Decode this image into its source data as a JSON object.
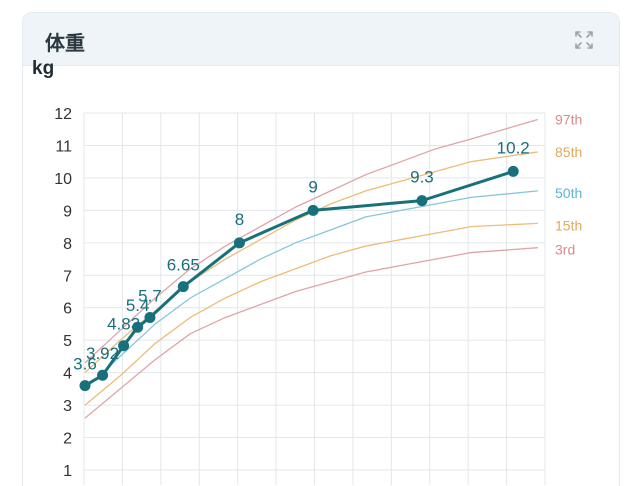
{
  "card": {
    "title": "体重",
    "expand_icon": "expand-arrows-icon"
  },
  "colors": {
    "child_series": "#17707a",
    "p97": "#e0a4a6",
    "p85": "#ecbd79",
    "p50": "#86c5dc",
    "p15": "#ecbd79",
    "p3": "#e0a4a6",
    "label_p97": "#d98c8c",
    "label_p85": "#e1a95a",
    "label_p50": "#5eb3d3",
    "label_p15": "#e1a95a",
    "label_p3": "#d98c8c",
    "grid": "#e3e7ea",
    "tick_text": "#333333"
  },
  "chart_data": {
    "type": "line",
    "ylabel": "kg",
    "ylim": [
      1,
      12
    ],
    "yticks": [
      1,
      2,
      3,
      4,
      5,
      6,
      7,
      8,
      9,
      10,
      11,
      12
    ],
    "xlim": [
      0,
      12
    ],
    "x_axis_labels_visible": false,
    "grid": true,
    "series": [
      {
        "name": "",
        "role": "child",
        "x": [
          0,
          0.5,
          1.1,
          1.5,
          1.85,
          2.8,
          4.4,
          6.5,
          9.6,
          12.2
        ],
        "values": [
          3.6,
          3.92,
          4.83,
          5.4,
          5.7,
          6.65,
          8,
          9,
          9.3,
          10.2
        ],
        "data_labels": [
          "3.6",
          "3.92",
          "4.83",
          "5.4",
          "5.7",
          "6.65",
          "8",
          "9",
          "9.3",
          "10.2"
        ]
      },
      {
        "name": "97th",
        "role": "p97",
        "x": [
          0,
          1,
          2,
          3,
          4,
          5,
          6,
          7,
          8,
          9,
          10,
          11,
          12.9
        ],
        "values": [
          4.3,
          5.3,
          6.3,
          7.2,
          7.9,
          8.5,
          9.1,
          9.6,
          10.1,
          10.5,
          10.9,
          11.2,
          11.8
        ]
      },
      {
        "name": "85th",
        "role": "p85",
        "x": [
          0,
          1,
          2,
          3,
          4,
          5,
          6,
          7,
          8,
          9,
          10,
          11,
          12.9
        ],
        "values": [
          4.0,
          5.0,
          5.9,
          6.8,
          7.5,
          8.1,
          8.7,
          9.2,
          9.6,
          9.9,
          10.2,
          10.5,
          10.8
        ]
      },
      {
        "name": "50th",
        "role": "p50",
        "x": [
          0,
          1,
          2,
          3,
          4,
          5,
          6,
          7,
          8,
          9,
          10,
          11,
          12.9
        ],
        "values": [
          3.5,
          4.5,
          5.5,
          6.3,
          6.9,
          7.5,
          8.0,
          8.4,
          8.8,
          9.0,
          9.2,
          9.4,
          9.6
        ]
      },
      {
        "name": "15th",
        "role": "p15",
        "x": [
          0,
          1,
          2,
          3,
          4,
          5,
          6,
          7,
          8,
          9,
          10,
          11,
          12.9
        ],
        "values": [
          3.0,
          3.9,
          4.9,
          5.7,
          6.3,
          6.8,
          7.2,
          7.6,
          7.9,
          8.1,
          8.3,
          8.5,
          8.6
        ]
      },
      {
        "name": "3rd",
        "role": "p3",
        "x": [
          0,
          1,
          2,
          3,
          4,
          5,
          6,
          7,
          8,
          9,
          10,
          11,
          12.9
        ],
        "values": [
          2.6,
          3.5,
          4.4,
          5.2,
          5.7,
          6.1,
          6.5,
          6.8,
          7.1,
          7.3,
          7.5,
          7.7,
          7.85
        ]
      }
    ]
  }
}
